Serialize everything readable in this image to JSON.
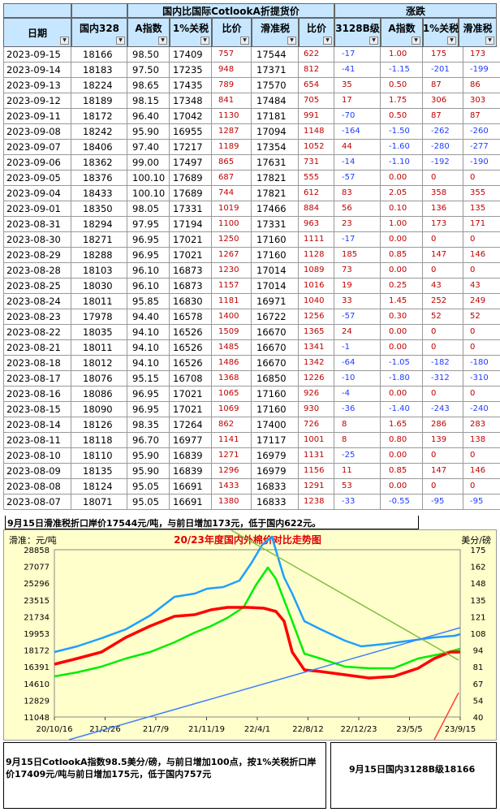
{
  "header": {
    "date": "日期",
    "domestic": "国内328",
    "group_intl": "国内比国际CotlookA折提货价",
    "a_index": "A指数",
    "duty1": "1%关税",
    "ratio": "比价",
    "slide": "滑准税",
    "ratio2": "比价",
    "group_change": "涨跌",
    "ch_3128": "3128B级",
    "ch_a": "A指数",
    "ch_duty": "1%关税",
    "ch_slide": "滑准税"
  },
  "rows": [
    {
      "date": "2023-09-15",
      "dom": "18166",
      "a": "98.50",
      "duty": "17409",
      "ratio": "757",
      "slide": "17544",
      "ratio2": "622",
      "ch": "-17",
      "cha": "1.00",
      "chd": "175",
      "chs": "173"
    },
    {
      "date": "2023-09-14",
      "dom": "18183",
      "a": "97.50",
      "duty": "17235",
      "ratio": "948",
      "slide": "17371",
      "ratio2": "812",
      "ch": "-41",
      "cha": "-1.15",
      "chd": "-201",
      "chs": "-199"
    },
    {
      "date": "2023-09-13",
      "dom": "18224",
      "a": "98.65",
      "duty": "17435",
      "ratio": "789",
      "slide": "17570",
      "ratio2": "654",
      "ch": "35",
      "cha": "0.50",
      "chd": "87",
      "chs": "86"
    },
    {
      "date": "2023-09-12",
      "dom": "18189",
      "a": "98.15",
      "duty": "17348",
      "ratio": "841",
      "slide": "17484",
      "ratio2": "705",
      "ch": "17",
      "cha": "1.75",
      "chd": "306",
      "chs": "303"
    },
    {
      "date": "2023-09-11",
      "dom": "18172",
      "a": "96.40",
      "duty": "17042",
      "ratio": "1130",
      "slide": "17181",
      "ratio2": "991",
      "ch": "-70",
      "cha": "0.50",
      "chd": "87",
      "chs": "87"
    },
    {
      "date": "2023-09-08",
      "dom": "18242",
      "a": "95.90",
      "duty": "16955",
      "ratio": "1287",
      "slide": "17094",
      "ratio2": "1148",
      "ch": "-164",
      "cha": "-1.50",
      "chd": "-262",
      "chs": "-260"
    },
    {
      "date": "2023-09-07",
      "dom": "18406",
      "a": "97.40",
      "duty": "17217",
      "ratio": "1189",
      "slide": "17354",
      "ratio2": "1052",
      "ch": "44",
      "cha": "-1.60",
      "chd": "-280",
      "chs": "-277"
    },
    {
      "date": "2023-09-06",
      "dom": "18362",
      "a": "99.00",
      "duty": "17497",
      "ratio": "865",
      "slide": "17631",
      "ratio2": "731",
      "ch": "-14",
      "cha": "-1.10",
      "chd": "-192",
      "chs": "-190"
    },
    {
      "date": "2023-09-05",
      "dom": "18376",
      "a": "100.10",
      "duty": "17689",
      "ratio": "687",
      "slide": "17821",
      "ratio2": "555",
      "ch": "-57",
      "cha": "0.00",
      "chd": "0",
      "chs": "0"
    },
    {
      "date": "2023-09-04",
      "dom": "18433",
      "a": "100.10",
      "duty": "17689",
      "ratio": "744",
      "slide": "17821",
      "ratio2": "612",
      "ch": "83",
      "cha": "2.05",
      "chd": "358",
      "chs": "355"
    },
    {
      "date": "2023-09-01",
      "dom": "18350",
      "a": "98.05",
      "duty": "17331",
      "ratio": "1019",
      "slide": "17466",
      "ratio2": "884",
      "ch": "56",
      "cha": "0.10",
      "chd": "136",
      "chs": "135"
    },
    {
      "date": "2023-08-31",
      "dom": "18294",
      "a": "97.95",
      "duty": "17194",
      "ratio": "1100",
      "slide": "17331",
      "ratio2": "963",
      "ch": "23",
      "cha": "1.00",
      "chd": "173",
      "chs": "171"
    },
    {
      "date": "2023-08-30",
      "dom": "18271",
      "a": "96.95",
      "duty": "17021",
      "ratio": "1250",
      "slide": "17160",
      "ratio2": "1111",
      "ch": "-17",
      "cha": "0.00",
      "chd": "0",
      "chs": "0"
    },
    {
      "date": "2023-08-29",
      "dom": "18288",
      "a": "96.95",
      "duty": "17021",
      "ratio": "1267",
      "slide": "17160",
      "ratio2": "1128",
      "ch": "185",
      "cha": "0.85",
      "chd": "147",
      "chs": "146"
    },
    {
      "date": "2023-08-28",
      "dom": "18103",
      "a": "96.10",
      "duty": "16873",
      "ratio": "1230",
      "slide": "17014",
      "ratio2": "1089",
      "ch": "73",
      "cha": "0.00",
      "chd": "0",
      "chs": "0"
    },
    {
      "date": "2023-08-25",
      "dom": "18030",
      "a": "96.10",
      "duty": "16873",
      "ratio": "1157",
      "slide": "17014",
      "ratio2": "1016",
      "ch": "19",
      "cha": "0.25",
      "chd": "43",
      "chs": "43"
    },
    {
      "date": "2023-08-24",
      "dom": "18011",
      "a": "95.85",
      "duty": "16830",
      "ratio": "1181",
      "slide": "16971",
      "ratio2": "1040",
      "ch": "33",
      "cha": "1.45",
      "chd": "252",
      "chs": "249"
    },
    {
      "date": "2023-08-23",
      "dom": "17978",
      "a": "94.40",
      "duty": "16578",
      "ratio": "1400",
      "slide": "16722",
      "ratio2": "1256",
      "ch": "-57",
      "cha": "0.30",
      "chd": "52",
      "chs": "52"
    },
    {
      "date": "2023-08-22",
      "dom": "18035",
      "a": "94.10",
      "duty": "16526",
      "ratio": "1509",
      "slide": "16670",
      "ratio2": "1365",
      "ch": "24",
      "cha": "0.00",
      "chd": "0",
      "chs": "0"
    },
    {
      "date": "2023-08-21",
      "dom": "18011",
      "a": "94.10",
      "duty": "16526",
      "ratio": "1485",
      "slide": "16670",
      "ratio2": "1341",
      "ch": "-1",
      "cha": "0.00",
      "chd": "0",
      "chs": "0"
    },
    {
      "date": "2023-08-18",
      "dom": "18012",
      "a": "94.10",
      "duty": "16526",
      "ratio": "1486",
      "slide": "16670",
      "ratio2": "1342",
      "ch": "-64",
      "cha": "-1.05",
      "chd": "-182",
      "chs": "-180"
    },
    {
      "date": "2023-08-17",
      "dom": "18076",
      "a": "95.15",
      "duty": "16708",
      "ratio": "1368",
      "slide": "16850",
      "ratio2": "1226",
      "ch": "-10",
      "cha": "-1.80",
      "chd": "-312",
      "chs": "-310"
    },
    {
      "date": "2023-08-16",
      "dom": "18086",
      "a": "96.95",
      "duty": "17021",
      "ratio": "1065",
      "slide": "17160",
      "ratio2": "926",
      "ch": "-4",
      "cha": "0.00",
      "chd": "0",
      "chs": "0"
    },
    {
      "date": "2023-08-15",
      "dom": "18090",
      "a": "96.95",
      "duty": "17021",
      "ratio": "1069",
      "slide": "17160",
      "ratio2": "930",
      "ch": "-36",
      "cha": "-1.40",
      "chd": "-243",
      "chs": "-240"
    },
    {
      "date": "2023-08-14",
      "dom": "18126",
      "a": "98.35",
      "duty": "17264",
      "ratio": "862",
      "slide": "17400",
      "ratio2": "726",
      "ch": "8",
      "cha": "1.65",
      "chd": "286",
      "chs": "283"
    },
    {
      "date": "2023-08-11",
      "dom": "18118",
      "a": "96.70",
      "duty": "16977",
      "ratio": "1141",
      "slide": "17117",
      "ratio2": "1001",
      "ch": "8",
      "cha": "0.80",
      "chd": "139",
      "chs": "138"
    },
    {
      "date": "2023-08-10",
      "dom": "18110",
      "a": "95.90",
      "duty": "16839",
      "ratio": "1271",
      "slide": "16979",
      "ratio2": "1131",
      "ch": "-25",
      "cha": "0.00",
      "chd": "0",
      "chs": "0"
    },
    {
      "date": "2023-08-09",
      "dom": "18135",
      "a": "95.90",
      "duty": "16839",
      "ratio": "1296",
      "slide": "16979",
      "ratio2": "1156",
      "ch": "11",
      "cha": "0.85",
      "chd": "147",
      "chs": "146"
    },
    {
      "date": "2023-08-08",
      "dom": "18124",
      "a": "95.05",
      "duty": "16691",
      "ratio": "1433",
      "slide": "16833",
      "ratio2": "1291",
      "ch": "53",
      "cha": "0.00",
      "chd": "0",
      "chs": "0"
    },
    {
      "date": "2023-08-07",
      "dom": "18071",
      "a": "95.05",
      "duty": "16691",
      "ratio": "1380",
      "slide": "16833",
      "ratio2": "1238",
      "ch": "-33",
      "cha": "-0.55",
      "chd": "-95",
      "chs": "-95"
    }
  ],
  "notes": {
    "slide_note": "9月15日滑准税折口岸价17544元/吨，与前日增加173元，低于国内622元。",
    "a_note": "9月15日CotlookA指数98.5美分/磅，与前日增加100点，按1%关税折口岸价17409元/吨与前日增加175元，低于国内757元",
    "dom_note": "9月15日国内3128B级18166"
  },
  "chart_data": {
    "type": "line",
    "title": "20/23年度国内外棉价对比走势图",
    "ylabel_left": "滑准：元/吨",
    "ylabel_right": "美分/磅",
    "y_left_ticks": [
      "28858",
      "27077",
      "25296",
      "23515",
      "21734",
      "19953",
      "18172",
      "16391",
      "14610",
      "12829",
      "11048"
    ],
    "y_right_ticks": [
      "175",
      "162",
      "148",
      "135",
      "121",
      "108",
      "94",
      "81",
      "67",
      "54",
      "40"
    ],
    "x_ticks": [
      "20/10/16",
      "21/2/26",
      "21/7/9",
      "21/11/19",
      "22/4/1",
      "22/8/12",
      "22/12/23",
      "23/5/5",
      "23/9/15"
    ],
    "ylim_left": [
      11048,
      28858
    ],
    "ylim_right": [
      40,
      175
    ],
    "series": [],
    "colors": {
      "blue": "#1e9fff",
      "red": "#ff0000",
      "green": "#00ee00",
      "annot_green": "#7fbf3f",
      "annot_blue": "#3f7fff",
      "annot_red": "#ff4040"
    }
  }
}
